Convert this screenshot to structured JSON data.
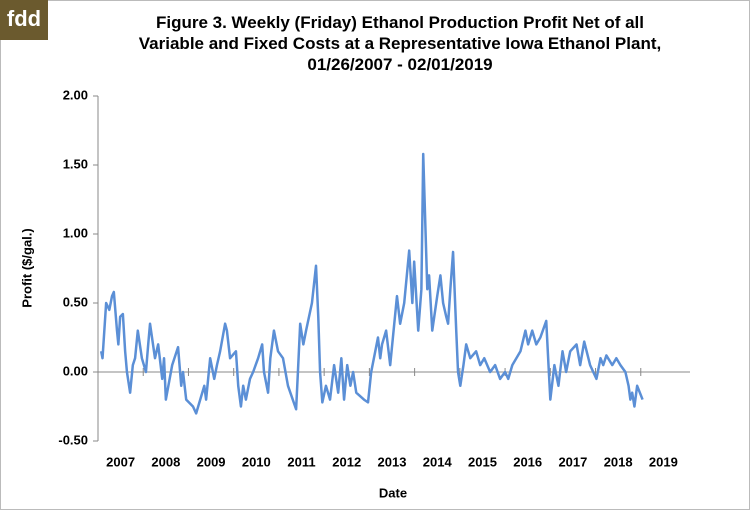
{
  "logo": "fdd",
  "chart_data": {
    "type": "line",
    "title": "Figure 3. Weekly (Friday) Ethanol Production Profit Net of all Variable and Fixed Costs at a Representative Iowa Ethanol Plant, 01/26/2007 - 02/01/2019",
    "xlabel": "Date",
    "ylabel": "Profit ($/gal.)",
    "grid": false,
    "xlim": [
      2007,
      2020
    ],
    "xticks": [
      2007,
      2008,
      2009,
      2010,
      2011,
      2012,
      2013,
      2014,
      2015,
      2016,
      2017,
      2018,
      2019
    ],
    "ylim": [
      -0.5,
      2.0
    ],
    "yticks": [
      {
        "value": -0.5,
        "label": "-0.50"
      },
      {
        "value": 0,
        "label": "0.00"
      },
      {
        "value": 0.5,
        "label": "0.50"
      },
      {
        "value": 1.0,
        "label": "1.00"
      },
      {
        "value": 1.5,
        "label": "1.50"
      },
      {
        "value": 2.0,
        "label": "2.00"
      }
    ],
    "x": [
      2007.07,
      2007.1,
      2007.18,
      2007.25,
      2007.31,
      2007.35,
      2007.42,
      2007.45,
      2007.49,
      2007.55,
      2007.6,
      2007.64,
      2007.71,
      2007.77,
      2007.82,
      2007.88,
      2007.97,
      2008.06,
      2008.11,
      2008.15,
      2008.26,
      2008.33,
      2008.42,
      2008.46,
      2008.5,
      2008.64,
      2008.77,
      2008.84,
      2008.88,
      2008.95,
      2009.1,
      2009.17,
      2009.26,
      2009.35,
      2009.39,
      2009.48,
      2009.57,
      2009.63,
      2009.7,
      2009.81,
      2009.85,
      2009.92,
      2010.05,
      2010.1,
      2010.16,
      2010.21,
      2010.27,
      2010.36,
      2010.43,
      2010.54,
      2010.63,
      2010.67,
      2010.76,
      2010.81,
      2010.89,
      2010.98,
      2011.09,
      2011.2,
      2011.38,
      2011.42,
      2011.47,
      2011.54,
      2011.6,
      2011.73,
      2011.82,
      2011.87,
      2011.91,
      2011.96,
      2012.04,
      2012.13,
      2012.22,
      2012.31,
      2012.38,
      2012.44,
      2012.51,
      2012.58,
      2012.64,
      2012.71,
      2012.88,
      2012.97,
      2013.04,
      2013.19,
      2013.24,
      2013.28,
      2013.37,
      2013.46,
      2013.61,
      2013.68,
      2013.77,
      2013.88,
      2013.95,
      2013.99,
      2014.08,
      2014.15,
      2014.19,
      2014.28,
      2014.32,
      2014.39,
      2014.5,
      2014.57,
      2014.63,
      2014.7,
      2014.74,
      2014.79,
      2014.85,
      2014.92,
      2014.96,
      2015.01,
      2015.08,
      2015.14,
      2015.23,
      2015.36,
      2015.45,
      2015.54,
      2015.67,
      2015.78,
      2015.89,
      2016.0,
      2016.07,
      2016.16,
      2016.34,
      2016.45,
      2016.51,
      2016.6,
      2016.69,
      2016.78,
      2016.91,
      2016.96,
      2017.0,
      2017.09,
      2017.18,
      2017.27,
      2017.35,
      2017.44,
      2017.58,
      2017.66,
      2017.75,
      2017.88,
      2018.02,
      2018.11,
      2018.17,
      2018.24,
      2018.37,
      2018.46,
      2018.55,
      2018.66,
      2018.73,
      2018.77,
      2018.81,
      2018.86,
      2018.92,
      2019.04
    ],
    "series": [
      {
        "name": "Profit",
        "color": "#5b8fd6",
        "values": [
          0.15,
          0.1,
          0.5,
          0.45,
          0.55,
          0.58,
          0.3,
          0.2,
          0.4,
          0.42,
          0.15,
          0.0,
          -0.15,
          0.05,
          0.1,
          0.3,
          0.1,
          0.0,
          0.2,
          0.35,
          0.1,
          0.2,
          -0.05,
          0.1,
          -0.2,
          0.05,
          0.18,
          -0.1,
          0.0,
          -0.2,
          -0.25,
          -0.3,
          -0.2,
          -0.1,
          -0.2,
          0.1,
          -0.05,
          0.05,
          0.15,
          0.35,
          0.3,
          0.1,
          0.15,
          -0.1,
          -0.25,
          -0.1,
          -0.2,
          -0.05,
          0.0,
          0.1,
          0.2,
          0.0,
          -0.15,
          0.1,
          0.3,
          0.15,
          0.1,
          -0.1,
          -0.27,
          0.0,
          0.35,
          0.2,
          0.3,
          0.5,
          0.77,
          0.4,
          0.0,
          -0.22,
          -0.1,
          -0.2,
          0.05,
          -0.15,
          0.1,
          -0.2,
          0.05,
          -0.1,
          0.0,
          -0.15,
          -0.2,
          -0.22,
          0.0,
          0.25,
          0.1,
          0.2,
          0.3,
          0.05,
          0.55,
          0.35,
          0.5,
          0.88,
          0.5,
          0.8,
          0.3,
          0.6,
          1.58,
          0.6,
          0.7,
          0.3,
          0.55,
          0.7,
          0.5,
          0.4,
          0.35,
          0.6,
          0.87,
          0.3,
          0.0,
          -0.1,
          0.05,
          0.2,
          0.1,
          0.15,
          0.05,
          0.1,
          0.0,
          0.05,
          -0.05,
          0.0,
          -0.05,
          0.05,
          0.15,
          0.3,
          0.2,
          0.3,
          0.2,
          0.25,
          0.37,
          0.05,
          -0.2,
          0.05,
          -0.1,
          0.15,
          0.0,
          0.15,
          0.2,
          0.05,
          0.22,
          0.05,
          -0.05,
          0.1,
          0.05,
          0.12,
          0.05,
          0.1,
          0.05,
          0.0,
          -0.1,
          -0.2,
          -0.15,
          -0.25,
          -0.1,
          -0.2
        ]
      }
    ]
  }
}
